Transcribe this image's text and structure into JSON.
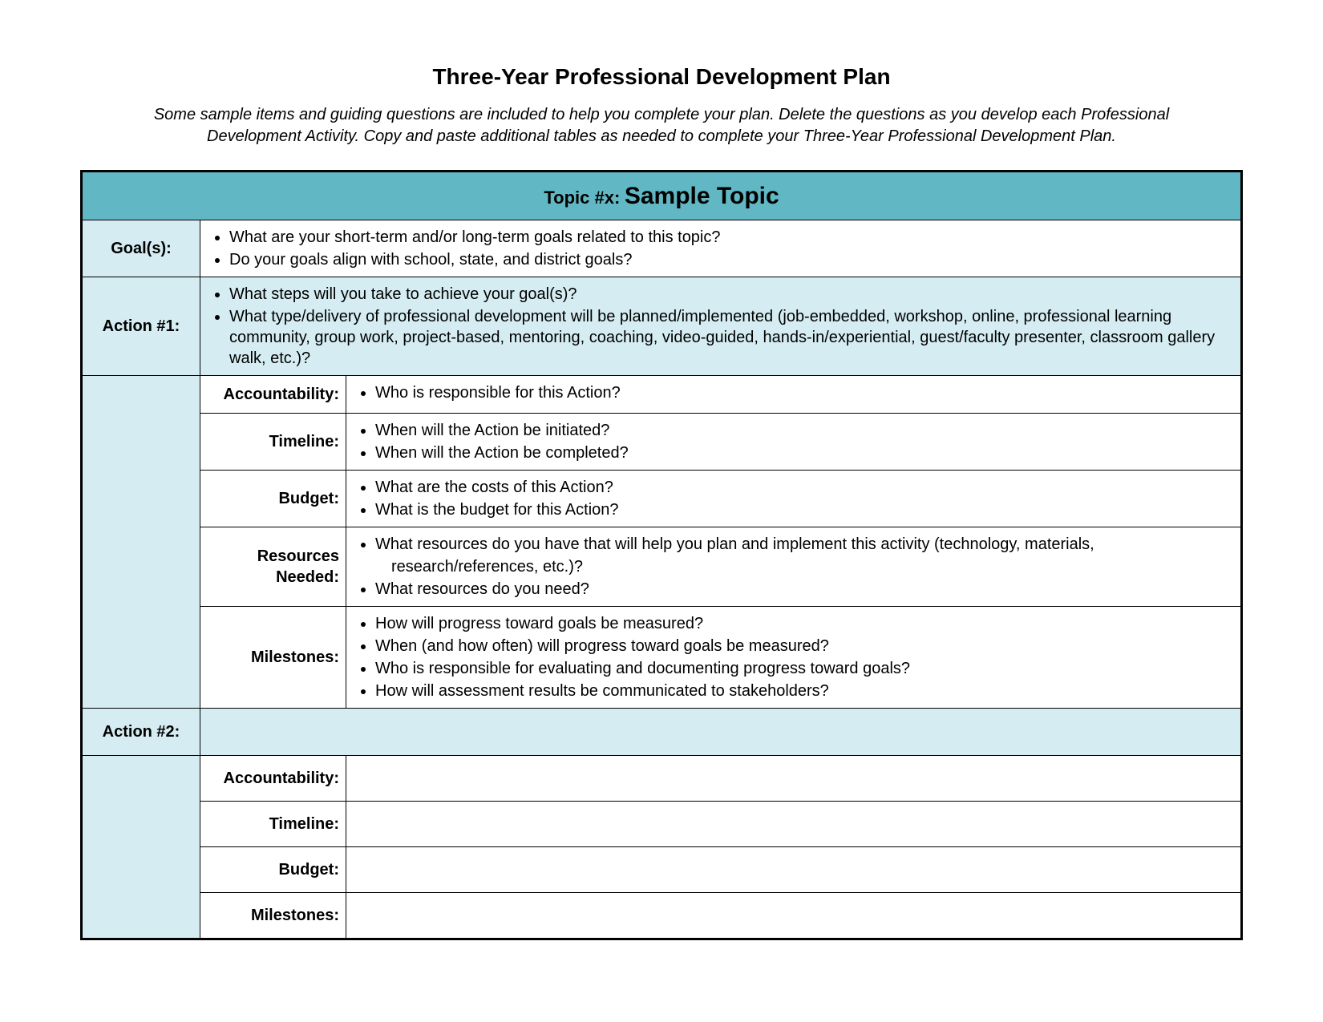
{
  "colors": {
    "header_bg": "#61b8c4",
    "tint_bg": "#d5edf2",
    "border": "#000000",
    "page_bg": "#ffffff",
    "text": "#000000"
  },
  "typography": {
    "title_fontsize": 28,
    "intro_fontsize": 20,
    "body_fontsize": 20,
    "topic_value_fontsize": 30,
    "font_family": "Arial"
  },
  "title": "Three-Year Professional Development Plan",
  "intro": "Some sample items and guiding questions are included to help you complete your plan. Delete the questions as you develop each Professional Development Activity. Copy and paste additional tables as needed to complete your Three-Year Professional Development Plan.",
  "topic": {
    "prefix": "Topic #x:",
    "value": "Sample Topic"
  },
  "rows": {
    "goals_label": "Goal(s):",
    "goals_items": [
      "What are your short-term and/or long-term goals related to this topic?",
      "Do your goals align with school, state, and district goals?"
    ],
    "action1_label": "Action #1:",
    "action1_items": [
      "What steps will you take to achieve your goal(s)?",
      "What type/delivery of professional development will be planned/implemented (job-embedded, workshop, online, professional learning community, group work, project-based, mentoring, coaching, video-guided, hands-in/experiential, guest/faculty presenter, classroom gallery walk, etc.)?"
    ],
    "accountability_label": "Accountability:",
    "accountability_items": [
      "Who is responsible for this Action?"
    ],
    "timeline_label": "Timeline:",
    "timeline_items": [
      "When will the Action be initiated?",
      "When will the Action be completed?"
    ],
    "budget_label": "Budget:",
    "budget_items": [
      "What are the costs of this Action?",
      "What is the budget for this Action?"
    ],
    "resources_label_line1": "Resources",
    "resources_label_line2": "Needed:",
    "resources_item1": "What resources do you have that will help you plan and implement this activity (technology, materials,",
    "resources_item1_cont": "research/references, etc.)?",
    "resources_item2": "What resources do you need?",
    "milestones_label": "Milestones:",
    "milestones_items": [
      "How will progress toward goals be measured?",
      "When (and how often) will progress toward goals be measured?",
      "Who is responsible for evaluating and documenting progress toward goals?",
      "How will assessment results be communicated to stakeholders?"
    ],
    "action2_label": "Action #2:",
    "accountability2_label": "Accountability:",
    "timeline2_label": "Timeline:",
    "budget2_label": "Budget:",
    "milestones2_label": "Milestones:"
  }
}
